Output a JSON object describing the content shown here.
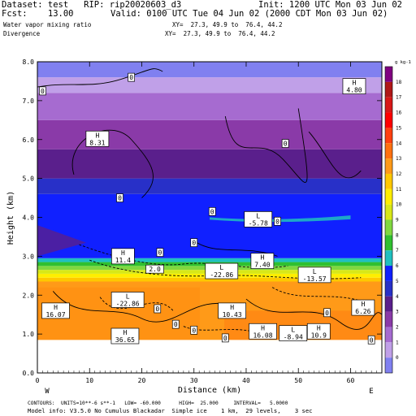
{
  "header": {
    "dataset": "Dataset: test   RIP: rip20020603_d3",
    "init": "Init: 1200 UTC Mon 03 Jun 02",
    "fcst": "Fcst:    13.00",
    "valid": "Valid: 0100 UTC Tue 04 Jun 02 (2000 CDT Mon 03 Jun 02)",
    "field1": "Water vapor mixing ratio",
    "xy1": "XY=  27.3, 49.9 to  76.4, 44.2",
    "field2": "Divergence",
    "xy2": "XY=  27.3, 49.9 to  76.4, 44.2"
  },
  "footer": {
    "line1": "CONTOURS:  UNITS=10**-6 s**-1   LOW= -60.000      HIGH=  25.000     INTERVAL=   5.0000",
    "line2": "Model info: V3.5.0 No Cumulus Blackadar  Simple ice    1 km,  29 levels,    3 sec"
  },
  "chart_data": {
    "type": "heatmap",
    "title": "Water vapor mixing ratio",
    "xlabel": "Distance (km)",
    "ylabel": "Height (km)",
    "xlim": [
      0,
      66
    ],
    "ylim": [
      0,
      8
    ],
    "x_ticks": [
      "0",
      "10",
      "20",
      "30",
      "40",
      "50",
      "60"
    ],
    "y_ticks": [
      "0.0",
      "1.0",
      "2.0",
      "3.0",
      "4.0",
      "5.0",
      "6.0",
      "7.0",
      "8.0"
    ],
    "x_end_labels": {
      "left": "W",
      "right": "E"
    },
    "colorbar": {
      "unit_label": "g kg-1",
      "labels": [
        "18",
        "17",
        "16",
        "15",
        "14",
        "13",
        "12",
        "11",
        "10",
        "9",
        "8",
        "7",
        "6",
        "5",
        "4",
        "3",
        "2",
        "1",
        "0"
      ],
      "colors": [
        "#800080",
        "#b01818",
        "#d81818",
        "#ff0000",
        "#ff4010",
        "#ff7010",
        "#ff9a18",
        "#ffc800",
        "#ffee00",
        "#d8e818",
        "#80d840",
        "#30c030",
        "#20c0c0",
        "#1020ff",
        "#2830c8",
        "#5a1f8c",
        "#8a3aa8",
        "#a66bd0",
        "#c0a0e8",
        "#8080f0"
      ]
    },
    "field_layers": [
      {
        "z0": 0.85,
        "z1": 2.35,
        "color": "#ff9a18"
      },
      {
        "z0": 2.35,
        "z1": 2.45,
        "color": "#ffc800"
      },
      {
        "z0": 2.45,
        "z1": 2.55,
        "color": "#ffee00"
      },
      {
        "z0": 2.55,
        "z1": 2.65,
        "color": "#d8e818"
      },
      {
        "z0": 2.65,
        "z1": 2.75,
        "color": "#80d840"
      },
      {
        "z0": 2.75,
        "z1": 2.85,
        "color": "#30c030"
      },
      {
        "z0": 2.85,
        "z1": 2.95,
        "color": "#20c0c0"
      },
      {
        "z0": 2.95,
        "z1": 4.6,
        "color": "#1020ff"
      },
      {
        "z0": 4.6,
        "z1": 5.0,
        "color": "#2830c8"
      },
      {
        "z0": 5.0,
        "z1": 5.75,
        "color": "#5a1f8c"
      },
      {
        "z0": 5.75,
        "z1": 6.5,
        "color": "#8a3aa8"
      },
      {
        "z0": 6.5,
        "z1": 7.2,
        "color": "#a66bd0"
      },
      {
        "z0": 7.2,
        "z1": 7.6,
        "color": "#c0a0e8"
      },
      {
        "z0": 7.6,
        "z1": 8.0,
        "color": "#8080f0"
      }
    ],
    "labels": [
      {
        "text": "H",
        "sub": "16.07",
        "x": 3.5,
        "y": 1.6
      },
      {
        "text": "H",
        "sub": "36.65",
        "x": 16.8,
        "y": 0.95
      },
      {
        "text": "L",
        "sub": "-22.86",
        "x": 17.3,
        "y": 1.88
      },
      {
        "text": "H",
        "sub": "10.43",
        "x": 37.3,
        "y": 1.6
      },
      {
        "text": "H",
        "sub": "16.08",
        "x": 43.2,
        "y": 1.07
      },
      {
        "text": "L",
        "sub": "-8.94",
        "x": 49.0,
        "y": 1.02
      },
      {
        "text": "H",
        "sub": "10.9",
        "x": 53.9,
        "y": 1.07
      },
      {
        "text": "H",
        "sub": "6.26",
        "x": 62.4,
        "y": 1.68
      },
      {
        "text": "L",
        "sub": "-22.86",
        "x": 35.3,
        "y": 2.62
      },
      {
        "text": "L",
        "sub": "-13.57",
        "x": 53.1,
        "y": 2.52
      },
      {
        "text": "H",
        "sub": "7.40",
        "x": 43.1,
        "y": 2.88
      },
      {
        "text": "L",
        "sub": "-5.78",
        "x": 42.3,
        "y": 3.95
      },
      {
        "text": "H",
        "sub": "8.31",
        "x": 11.5,
        "y": 6.02
      },
      {
        "text": "H",
        "sub": "4.80",
        "x": 60.7,
        "y": 7.37
      },
      {
        "text": "H",
        "sub": "11.4",
        "x": 16.4,
        "y": 3.0
      },
      {
        "text": "2.0",
        "sub": "",
        "x": 22.5,
        "y": 2.67
      }
    ],
    "contour_zero_labels": [
      {
        "x": 18.0,
        "y": 7.6
      },
      {
        "x": 1.0,
        "y": 7.25
      },
      {
        "x": 47.5,
        "y": 5.9
      },
      {
        "x": 15.8,
        "y": 4.5
      },
      {
        "x": 33.5,
        "y": 4.15
      },
      {
        "x": 46.0,
        "y": 3.9
      },
      {
        "x": 30.0,
        "y": 3.35
      },
      {
        "x": 23.5,
        "y": 3.1
      },
      {
        "x": 23.0,
        "y": 1.65
      },
      {
        "x": 30.0,
        "y": 1.1
      },
      {
        "x": 55.5,
        "y": 1.55
      },
      {
        "x": 64.0,
        "y": 0.85
      },
      {
        "x": 36.0,
        "y": 0.9
      },
      {
        "x": 26.5,
        "y": 1.25
      }
    ]
  }
}
